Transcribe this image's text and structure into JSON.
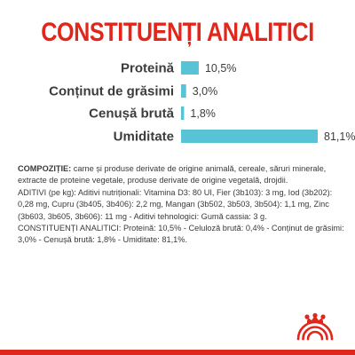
{
  "colors": {
    "brand_red": "#e1261c",
    "bar_blue": "#59c3d6",
    "text_dark": "#3c3c3b",
    "text_body": "#3a3a3a"
  },
  "chart_data": {
    "type": "bar",
    "orientation": "horizontal",
    "title": "CONSTITUENȚI ANALITICI",
    "categories": [
      "Proteină",
      "Conținut de grăsimi",
      "Cenușă brută",
      "Umiditate"
    ],
    "values": [
      10.5,
      3.0,
      1.8,
      81.1
    ],
    "value_labels": [
      "10,5%",
      "3,0%",
      "1,8%",
      "81,1%"
    ],
    "unit": "%",
    "xlim": [
      0,
      81.1
    ],
    "grid": false,
    "legend": "none"
  },
  "composition": {
    "lead": "COMPOZIȚIE:",
    "text": " carne și produse derivate de origine animală, cereale, săruri minerale, extracte de proteine vegetale, produse derivate de origine vegetală, drojdii.",
    "additives": "ADITIVI (pe kg): Aditivi nutriționali: Vitamina D3: 80 UI, Fier (3b103): 3 mg, Iod (3b202): 0,28 mg, Cupru (3b405, 3b406): 2,2 mg, Mangan (3b502, 3b503, 3b504): 1,1 mg, Zinc (3b603, 3b605, 3b606): 11 mg - Aditivi tehnologici: Gumă cassia: 3 g.",
    "constituents": "CONSTITUENȚI ANALITICI: Proteină: 10,5% - Celuloză brută: 0,4% - Conținut de grăsimi: 3,0% - Cenușă brută: 1,8% - Umiditate: 81,1%."
  },
  "logo": {
    "icon": "royal-canin-crown-icon"
  }
}
